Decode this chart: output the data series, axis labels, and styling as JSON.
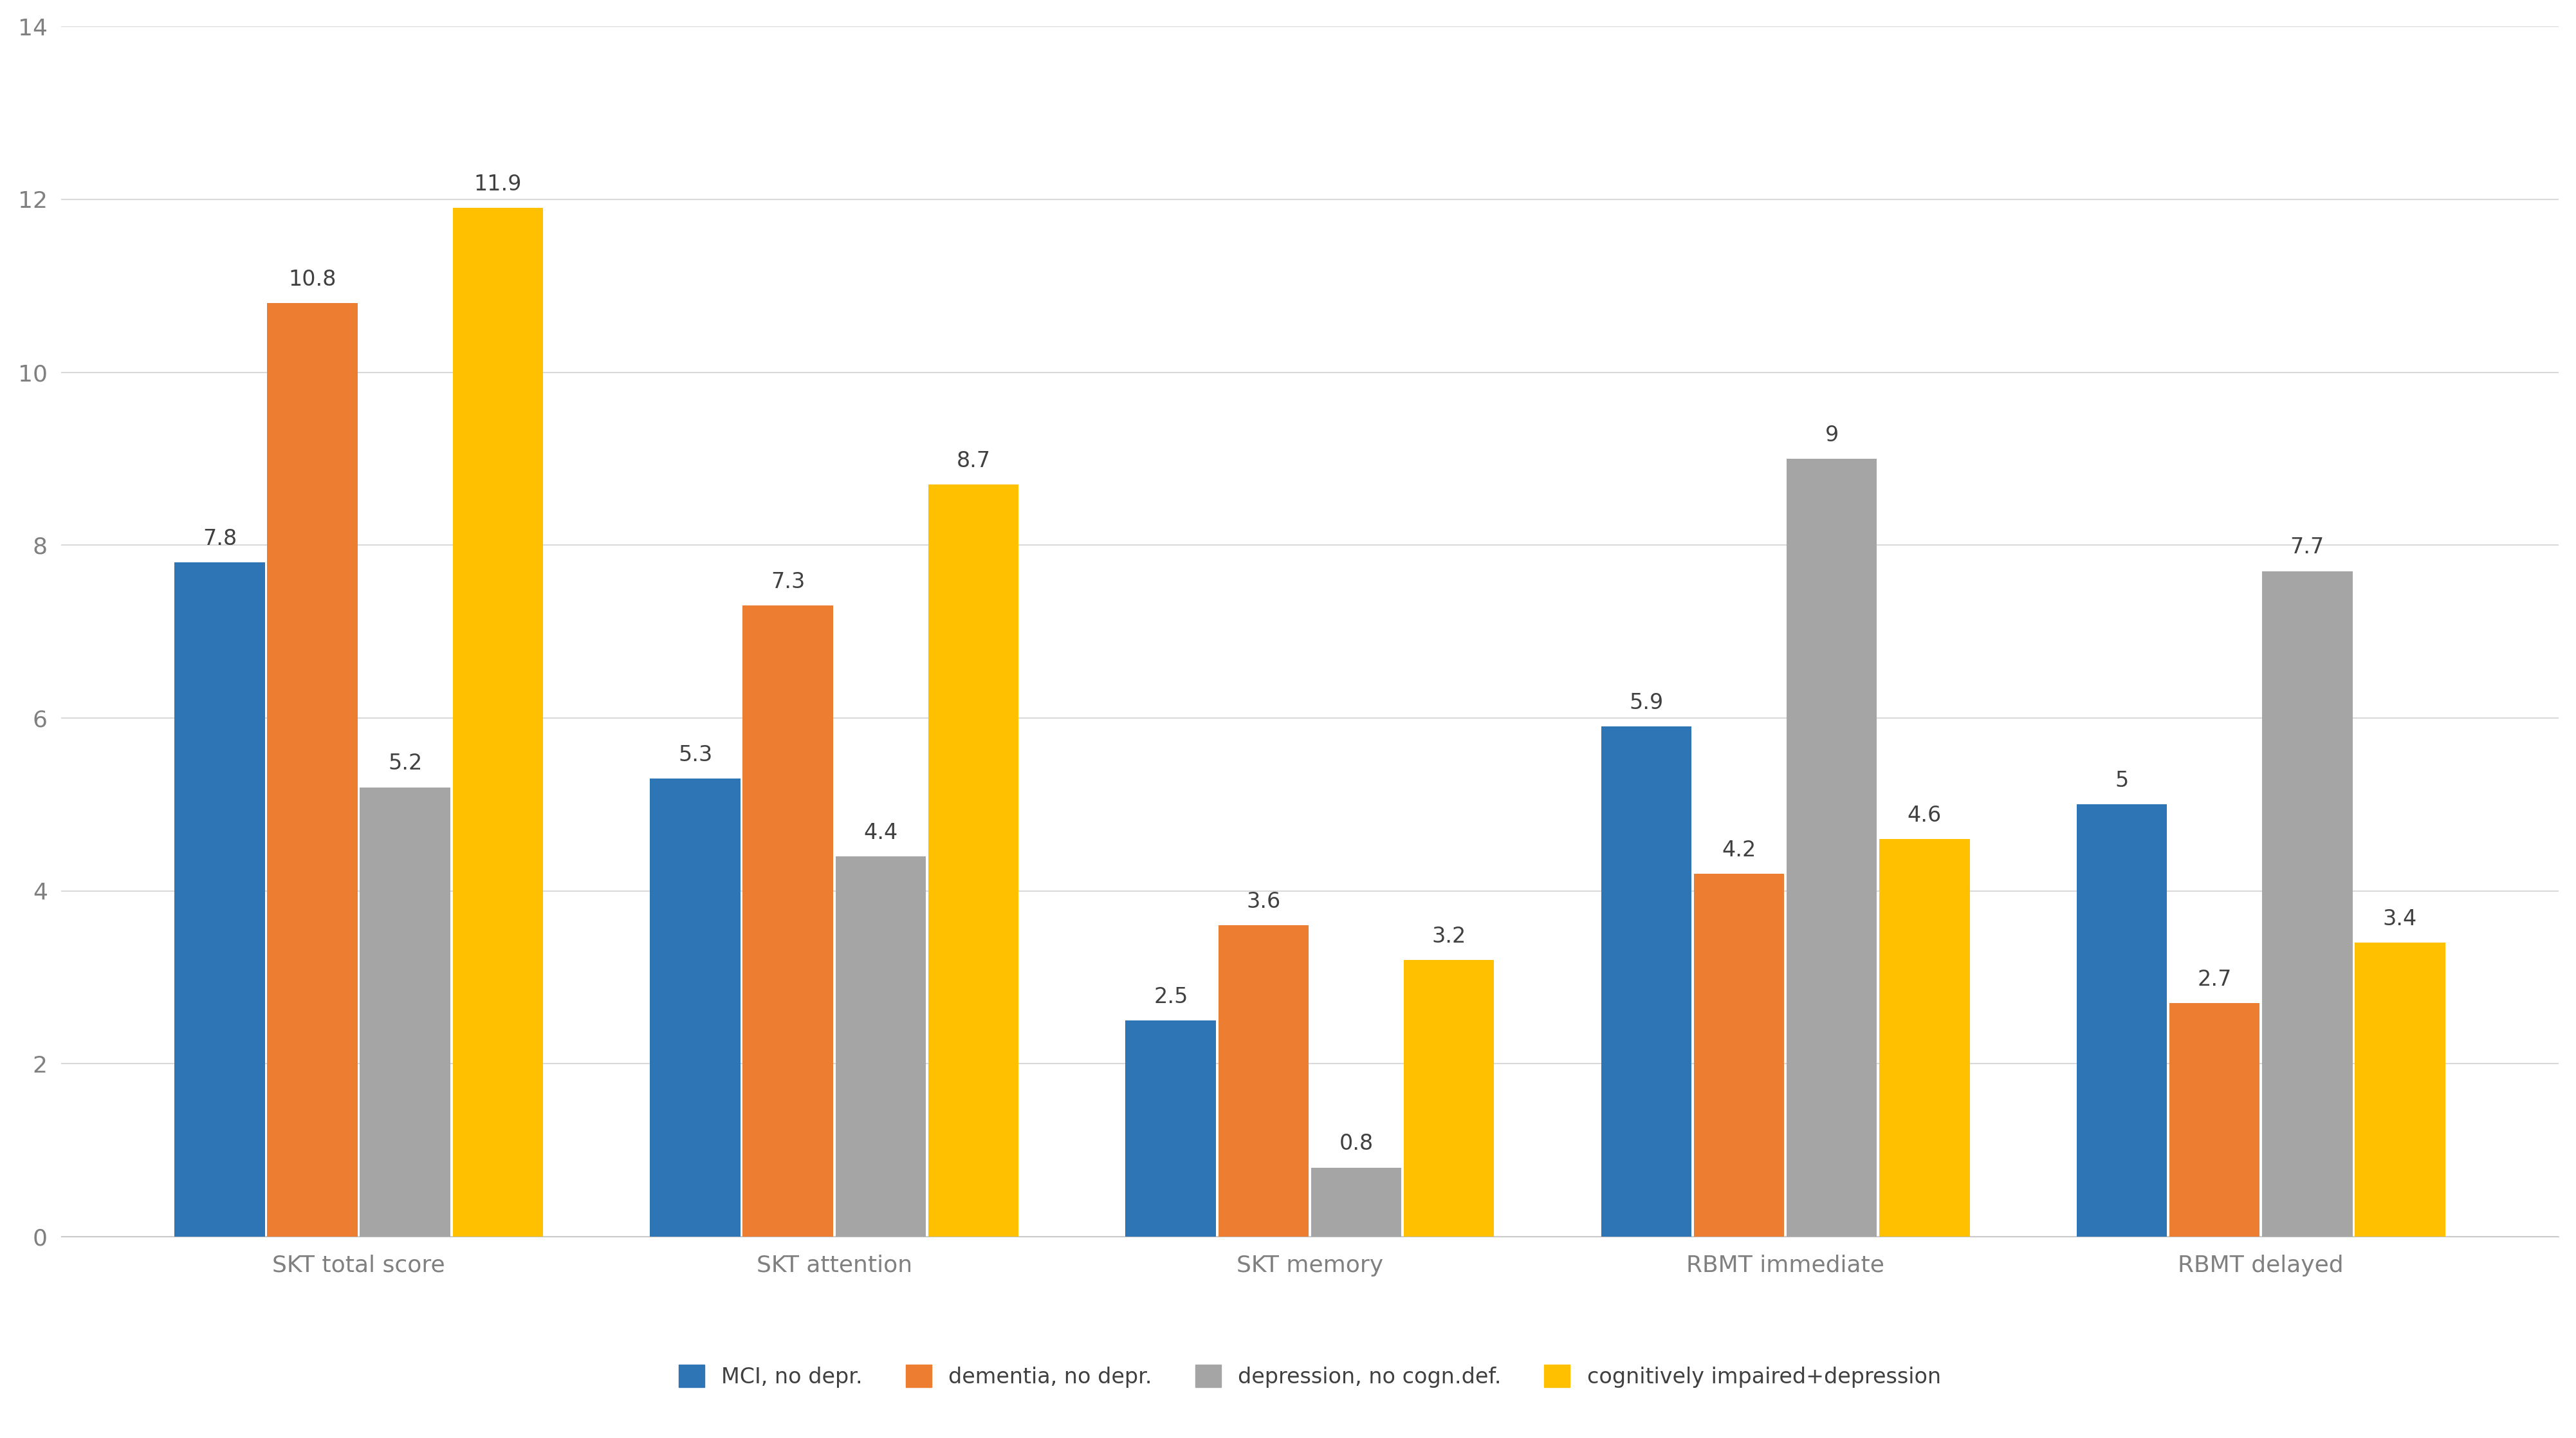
{
  "categories": [
    "SKT total score",
    "SKT attention",
    "SKT memory",
    "RBMT immediate",
    "RBMT delayed"
  ],
  "series": [
    {
      "label": "MCI, no depr.",
      "color": "#2E75B6",
      "values": [
        7.8,
        5.3,
        2.5,
        5.9,
        5.0
      ]
    },
    {
      "label": "dementia, no depr.",
      "color": "#ED7D31",
      "values": [
        10.8,
        7.3,
        3.6,
        4.2,
        2.7
      ]
    },
    {
      "label": "depression, no cogn.def.",
      "color": "#A5A5A5",
      "values": [
        5.2,
        4.4,
        0.8,
        9.0,
        7.7
      ]
    },
    {
      "label": "cognitively impaired+depression",
      "color": "#FFC000",
      "values": [
        11.9,
        8.7,
        3.2,
        4.6,
        3.4
      ]
    }
  ],
  "ylim": [
    0,
    14
  ],
  "yticks": [
    0,
    2,
    4,
    6,
    8,
    10,
    12,
    14
  ],
  "bar_width": 0.19,
  "bar_spacing": 0.005,
  "background_color": "#FFFFFF",
  "grid_color": "#D9D9D9",
  "tick_fontsize": 26,
  "legend_fontsize": 24,
  "value_fontsize": 24,
  "label_display": [
    "7.8",
    "10.8",
    "5.2",
    "11.9",
    "5.3",
    "7.3",
    "4.4",
    "8.7",
    "2.5",
    "3.6",
    "0.8",
    "3.2",
    "5.9",
    "4.2",
    "9",
    "4.6",
    "5",
    "2.7",
    "7.7",
    "3.4"
  ]
}
